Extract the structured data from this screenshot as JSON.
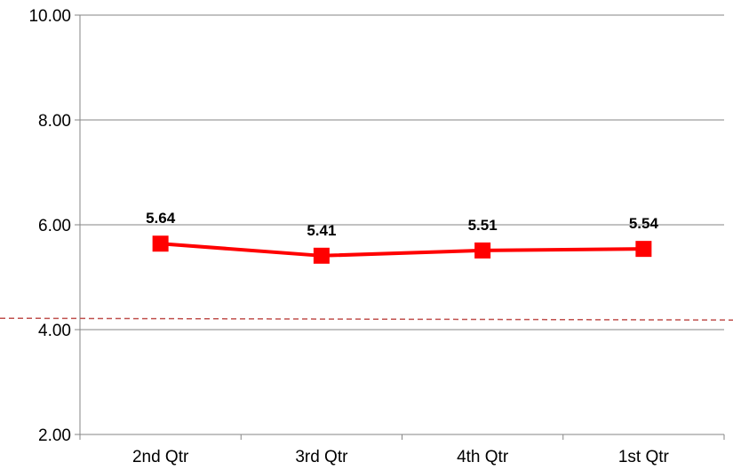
{
  "chart_data": {
    "type": "line",
    "title": "",
    "xlabel": "",
    "ylabel": "",
    "categories": [
      "2nd Qtr",
      "3rd Qtr",
      "4th Qtr",
      "1st Qtr"
    ],
    "series": [
      {
        "values": [
          5.64,
          5.41,
          5.51,
          5.54
        ],
        "labels": [
          "5.64",
          "5.41",
          "5.51",
          "5.54"
        ],
        "color": "#ff0000",
        "marker": "square"
      }
    ],
    "reference_line": {
      "value": 4.2,
      "color": "#c0504d",
      "style": "dashed"
    },
    "ylim": [
      2,
      10
    ],
    "yticks": [
      2,
      4,
      6,
      8,
      10
    ],
    "ytick_labels": [
      "2.00",
      "4.00",
      "6.00",
      "8.00",
      "10.00"
    ],
    "grid": true,
    "gridline_color": "#868686",
    "legend": "none"
  }
}
